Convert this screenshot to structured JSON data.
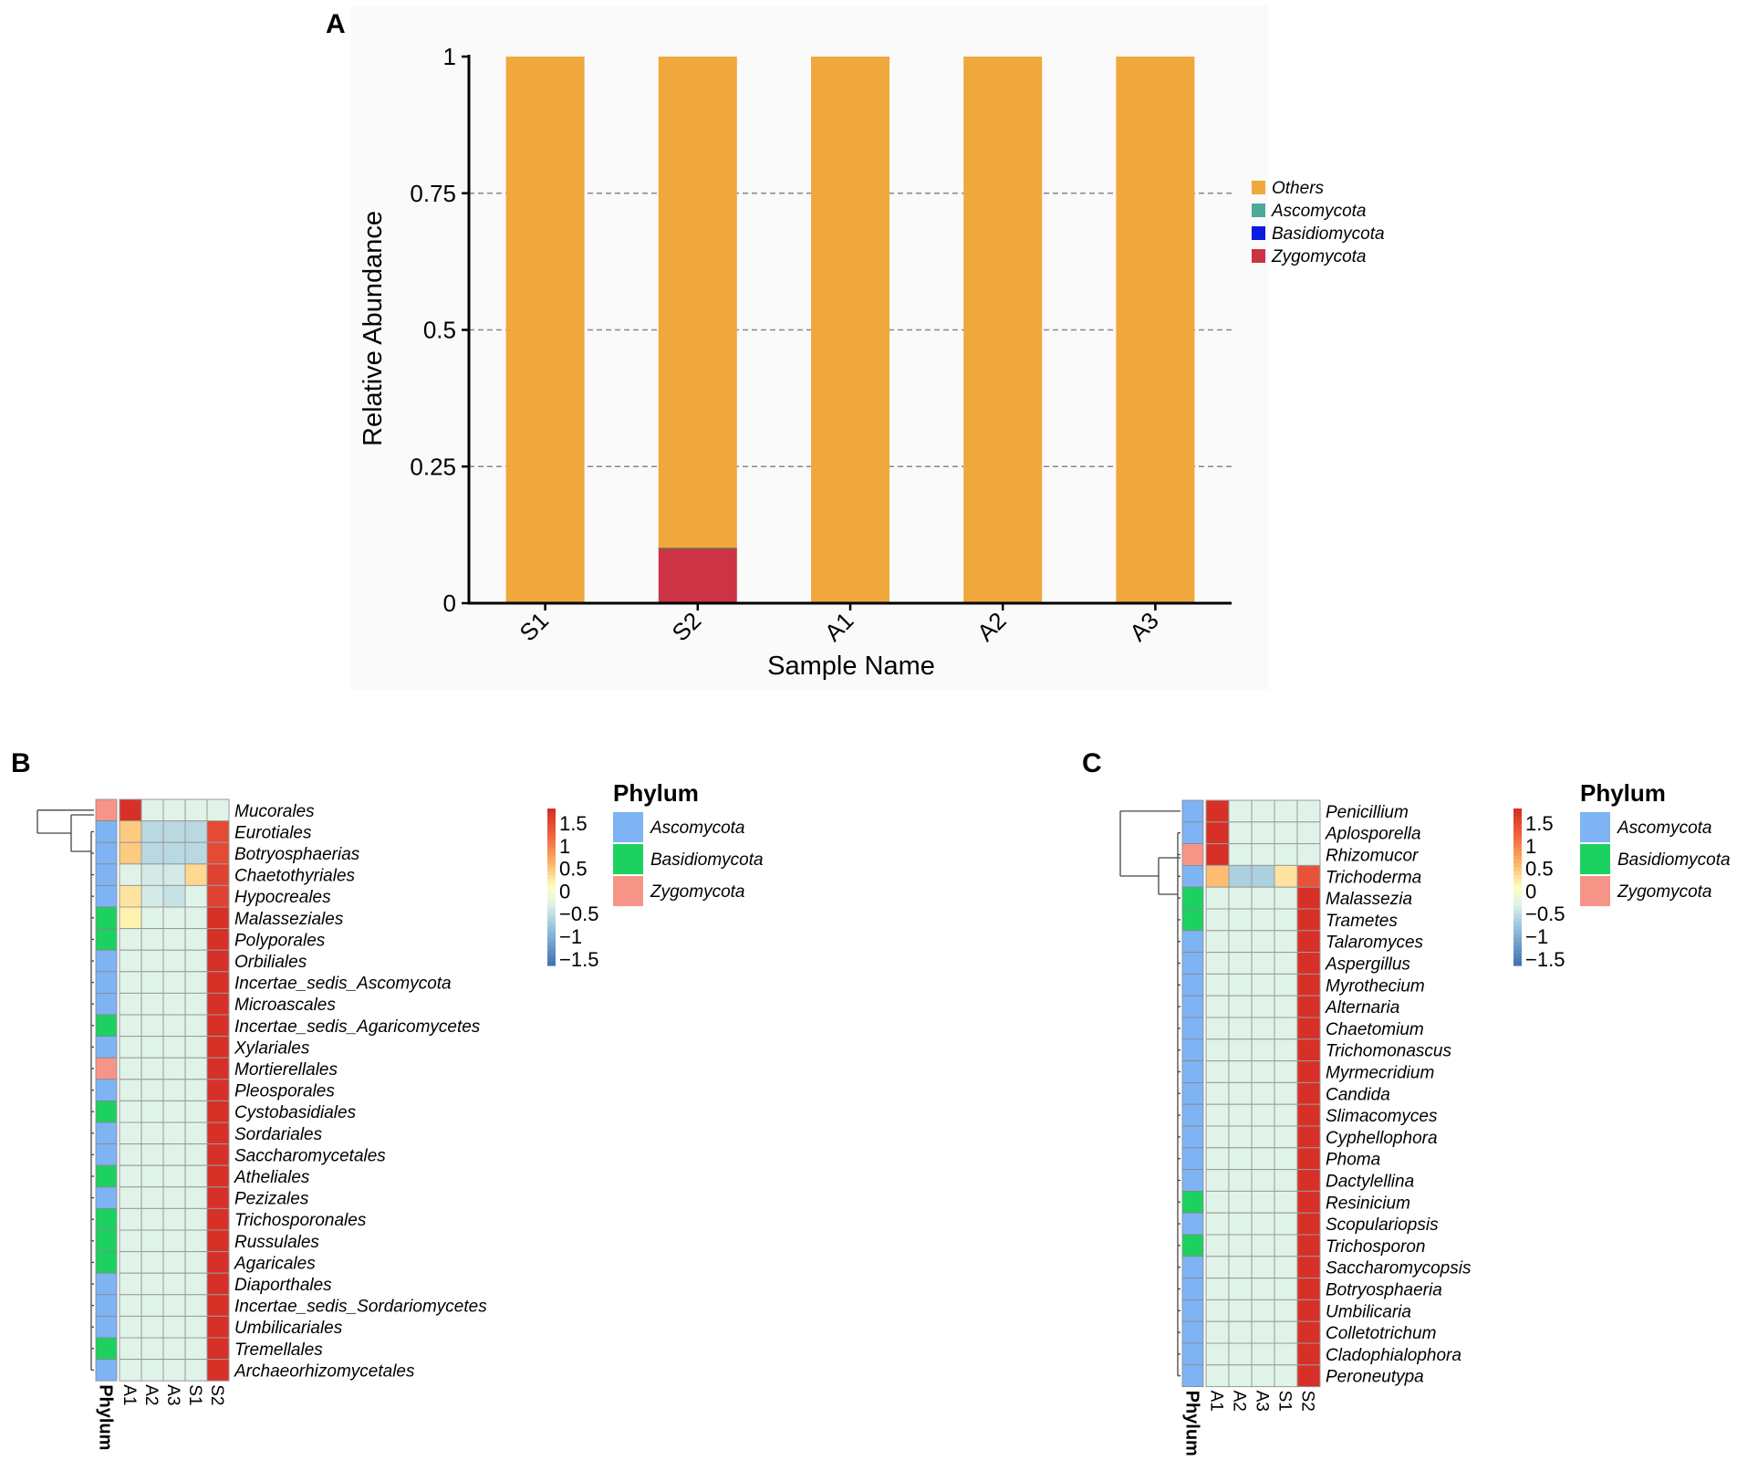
{
  "colors": {
    "Others": "#F0A83C",
    "Ascomycota": "#4BAA9C",
    "Basidiomycota": "#0B1BE0",
    "Zygomycota": "#CC3344",
    "phy_Ascomycota": "#7EB3F4",
    "phy_Basidiomycota": "#1DD160",
    "phy_Zygomycota": "#F69488"
  },
  "chart_data": [
    {
      "panel": "A",
      "type": "bar",
      "stacked": true,
      "xlabel": "Sample Name",
      "ylabel": "Relative Abundance",
      "ylim": [
        0,
        1
      ],
      "yticks": [
        "0",
        "0.25",
        "0.5",
        "0.75",
        "1"
      ],
      "categories": [
        "S1",
        "S2",
        "A1",
        "A2",
        "A3"
      ],
      "legend": [
        "Others",
        "Ascomycota",
        "Basidiomycota",
        "Zygomycota"
      ],
      "series": [
        {
          "name": "Zygomycota",
          "values": [
            0,
            0.1,
            0,
            0,
            0
          ]
        },
        {
          "name": "Basidiomycota",
          "values": [
            0,
            0,
            0,
            0,
            0
          ]
        },
        {
          "name": "Ascomycota",
          "values": [
            0,
            0,
            0,
            0,
            0
          ]
        },
        {
          "name": "Others",
          "values": [
            1,
            0.9,
            1,
            1,
            1
          ]
        }
      ]
    },
    {
      "panel": "B",
      "type": "heatmap",
      "columns": [
        "A1",
        "A2",
        "A3",
        "S1",
        "S2"
      ],
      "phylum_axis_label": "Phylum",
      "legend_title": "Phylum",
      "legend_items": [
        "Ascomycota",
        "Basidiomycota",
        "Zygomycota"
      ],
      "colorbar_ticks": [
        "1.5",
        "1",
        "0.5",
        "0",
        "−0.5",
        "−1",
        "−1.5"
      ],
      "rows": [
        "Mucorales",
        "Eurotiales",
        "Botryosphaerias",
        "Chaetothyriales",
        "Hypocreales",
        "Malasseziales",
        "Polyporales",
        "Orbiliales",
        "Incertae_sedis_Ascomycota",
        "Microascales",
        "Incertae_sedis_Agaricomycetes",
        "Xylariales",
        "Mortierellales",
        "Pleosporales",
        "Cystobasidiales",
        "Sordariales",
        "Saccharomycetales",
        "Atheliales",
        "Pezizales",
        "Trichosporonales",
        "Russulales",
        "Agaricales",
        "Diaporthales",
        "Incertae_sedis_Sordariomycetes",
        "Umbilicariales",
        "Tremellales",
        "Archaeorhizomycetales"
      ],
      "phylum": [
        "Z",
        "A",
        "A",
        "A",
        "A",
        "B",
        "B",
        "A",
        "A",
        "A",
        "B",
        "A",
        "Z",
        "A",
        "B",
        "A",
        "A",
        "B",
        "A",
        "B",
        "B",
        "B",
        "A",
        "A",
        "A",
        "B",
        "A"
      ],
      "values": [
        [
          1.8,
          -0.4,
          -0.4,
          -0.4,
          -0.4
        ],
        [
          0.4,
          -0.7,
          -0.7,
          -0.7,
          1.5
        ],
        [
          0.4,
          -0.7,
          -0.7,
          -0.7,
          1.5
        ],
        [
          -0.4,
          -0.5,
          -0.5,
          0.3,
          1.6
        ],
        [
          0.2,
          -0.5,
          -0.6,
          -0.4,
          1.6
        ],
        [
          0.1,
          -0.4,
          -0.4,
          -0.4,
          1.8
        ],
        [
          -0.4,
          -0.4,
          -0.4,
          -0.4,
          1.8
        ],
        [
          -0.4,
          -0.4,
          -0.4,
          -0.4,
          1.8
        ],
        [
          -0.4,
          -0.4,
          -0.4,
          -0.4,
          1.8
        ],
        [
          -0.4,
          -0.4,
          -0.4,
          -0.4,
          1.8
        ],
        [
          -0.4,
          -0.4,
          -0.4,
          -0.4,
          1.8
        ],
        [
          -0.4,
          -0.4,
          -0.4,
          -0.4,
          1.8
        ],
        [
          -0.4,
          -0.4,
          -0.4,
          -0.4,
          1.8
        ],
        [
          -0.4,
          -0.4,
          -0.4,
          -0.4,
          1.8
        ],
        [
          -0.4,
          -0.4,
          -0.4,
          -0.4,
          1.8
        ],
        [
          -0.4,
          -0.4,
          -0.4,
          -0.4,
          1.8
        ],
        [
          -0.4,
          -0.4,
          -0.4,
          -0.4,
          1.8
        ],
        [
          -0.4,
          -0.4,
          -0.4,
          -0.4,
          1.8
        ],
        [
          -0.4,
          -0.4,
          -0.4,
          -0.4,
          1.8
        ],
        [
          -0.4,
          -0.4,
          -0.4,
          -0.4,
          1.8
        ],
        [
          -0.4,
          -0.4,
          -0.4,
          -0.4,
          1.8
        ],
        [
          -0.4,
          -0.4,
          -0.4,
          -0.4,
          1.8
        ],
        [
          -0.4,
          -0.4,
          -0.4,
          -0.4,
          1.8
        ],
        [
          -0.4,
          -0.4,
          -0.4,
          -0.4,
          1.8
        ],
        [
          -0.4,
          -0.4,
          -0.4,
          -0.4,
          1.8
        ],
        [
          -0.4,
          -0.4,
          -0.4,
          -0.4,
          1.8
        ],
        [
          -0.4,
          -0.4,
          -0.4,
          -0.4,
          1.8
        ]
      ]
    },
    {
      "panel": "C",
      "type": "heatmap",
      "columns": [
        "A1",
        "A2",
        "A3",
        "S1",
        "S2"
      ],
      "phylum_axis_label": "Phylum",
      "legend_title": "Phylum",
      "legend_items": [
        "Ascomycota",
        "Basidiomycota",
        "Zygomycota"
      ],
      "colorbar_ticks": [
        "1.5",
        "1",
        "0.5",
        "0",
        "−0.5",
        "−1",
        "−1.5"
      ],
      "rows": [
        "Penicillium",
        "Aplosporella",
        "Rhizomucor",
        "Trichoderma",
        "Malassezia",
        "Trametes",
        "Talaromyces",
        "Aspergillus",
        "Myrothecium",
        "Alternaria",
        "Chaetomium",
        "Trichomonascus",
        "Myrmecridium",
        "Candida",
        "Slimacomyces",
        "Cyphellophora",
        "Phoma",
        "Dactylellina",
        "Resinicium",
        "Scopulariopsis",
        "Trichosporon",
        "Saccharomycopsis",
        "Botryosphaeria",
        "Umbilicaria",
        "Colletotrichum",
        "Cladophialophora",
        "Peroneutypa"
      ],
      "phylum": [
        "A",
        "A",
        "Z",
        "A",
        "B",
        "B",
        "A",
        "A",
        "A",
        "A",
        "A",
        "A",
        "A",
        "A",
        "A",
        "A",
        "A",
        "A",
        "B",
        "A",
        "B",
        "A",
        "A",
        "A",
        "A",
        "A",
        "A"
      ],
      "values": [
        [
          1.8,
          -0.4,
          -0.4,
          -0.4,
          -0.4
        ],
        [
          1.8,
          -0.4,
          -0.4,
          -0.4,
          -0.4
        ],
        [
          1.8,
          -0.4,
          -0.4,
          -0.4,
          -0.4
        ],
        [
          0.5,
          -0.8,
          -0.8,
          0.2,
          1.4
        ],
        [
          -0.4,
          -0.4,
          -0.4,
          -0.4,
          1.8
        ],
        [
          -0.4,
          -0.4,
          -0.4,
          -0.4,
          1.8
        ],
        [
          -0.4,
          -0.4,
          -0.4,
          -0.4,
          1.8
        ],
        [
          -0.4,
          -0.4,
          -0.4,
          -0.4,
          1.8
        ],
        [
          -0.4,
          -0.4,
          -0.4,
          -0.4,
          1.8
        ],
        [
          -0.4,
          -0.4,
          -0.4,
          -0.4,
          1.8
        ],
        [
          -0.4,
          -0.4,
          -0.4,
          -0.4,
          1.8
        ],
        [
          -0.4,
          -0.4,
          -0.4,
          -0.4,
          1.8
        ],
        [
          -0.4,
          -0.4,
          -0.4,
          -0.4,
          1.8
        ],
        [
          -0.4,
          -0.4,
          -0.4,
          -0.4,
          1.8
        ],
        [
          -0.4,
          -0.4,
          -0.4,
          -0.4,
          1.8
        ],
        [
          -0.4,
          -0.4,
          -0.4,
          -0.4,
          1.8
        ],
        [
          -0.4,
          -0.4,
          -0.4,
          -0.4,
          1.8
        ],
        [
          -0.4,
          -0.4,
          -0.4,
          -0.4,
          1.8
        ],
        [
          -0.4,
          -0.4,
          -0.4,
          -0.4,
          1.8
        ],
        [
          -0.4,
          -0.4,
          -0.4,
          -0.4,
          1.8
        ],
        [
          -0.4,
          -0.4,
          -0.4,
          -0.4,
          1.8
        ],
        [
          -0.4,
          -0.4,
          -0.4,
          -0.4,
          1.8
        ],
        [
          -0.4,
          -0.4,
          -0.4,
          -0.4,
          1.8
        ],
        [
          -0.4,
          -0.4,
          -0.4,
          -0.4,
          1.8
        ],
        [
          -0.4,
          -0.4,
          -0.4,
          -0.4,
          1.8
        ],
        [
          -0.4,
          -0.4,
          -0.4,
          -0.4,
          1.8
        ],
        [
          -0.4,
          -0.4,
          -0.4,
          -0.4,
          1.8
        ]
      ]
    }
  ]
}
